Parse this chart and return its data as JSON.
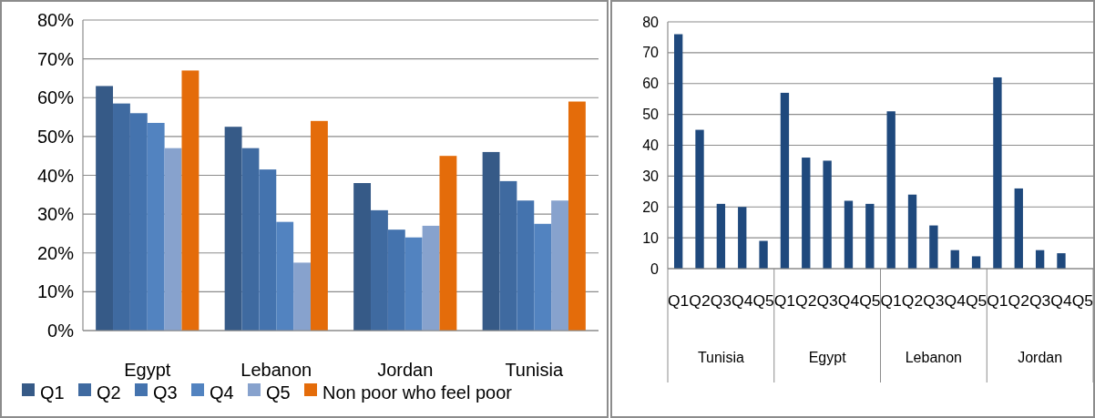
{
  "chart_data": [
    {
      "type": "bar",
      "categories": [
        "Egypt",
        "Lebanon",
        "Jordan",
        "Tunisia"
      ],
      "series": [
        {
          "name": "Q1",
          "color": "#365a87",
          "values": [
            63,
            52.5,
            38,
            46
          ]
        },
        {
          "name": "Q2",
          "color": "#3f6aa0",
          "values": [
            58.5,
            47,
            31,
            38.5
          ]
        },
        {
          "name": "Q3",
          "color": "#4473ae",
          "values": [
            56,
            41.5,
            26,
            33.5
          ]
        },
        {
          "name": "Q4",
          "color": "#5283c0",
          "values": [
            53.5,
            28,
            24,
            27.5
          ]
        },
        {
          "name": "Q5",
          "color": "#87a2cd",
          "values": [
            47,
            17.5,
            27,
            33.5
          ]
        },
        {
          "name": "Non poor who feel poor",
          "color": "#e46c0a",
          "values": [
            67,
            54,
            45,
            59
          ]
        }
      ],
      "ylim": [
        0,
        80
      ],
      "yticks": [
        {
          "value": 0,
          "label": "0%"
        },
        {
          "value": 10,
          "label": "10%"
        },
        {
          "value": 20,
          "label": "20%"
        },
        {
          "value": 30,
          "label": "30%"
        },
        {
          "value": 40,
          "label": "40%"
        },
        {
          "value": 50,
          "label": "50%"
        },
        {
          "value": 60,
          "label": "60%"
        },
        {
          "value": 70,
          "label": "70%"
        },
        {
          "value": 80,
          "label": "80%"
        }
      ],
      "grid": "y",
      "legend": "bottom"
    },
    {
      "type": "bar",
      "categories": [
        "Q1",
        "Q2",
        "Q3",
        "Q4",
        "Q5",
        "Q1",
        "Q2",
        "Q3",
        "Q4",
        "Q5",
        "Q1",
        "Q2",
        "Q3",
        "Q4",
        "Q5",
        "Q1",
        "Q2",
        "Q3",
        "Q4",
        "Q5"
      ],
      "values": [
        76,
        45,
        21,
        20,
        9,
        57,
        36,
        35,
        22,
        21,
        51,
        24,
        14,
        6,
        4,
        62,
        26,
        6,
        5,
        null
      ],
      "color": "#1f497d",
      "annotations": [
        "Tunisia",
        "Egypt",
        "Lebanon",
        "Jordan"
      ],
      "ylim": [
        0,
        80
      ],
      "yticks": [
        0,
        10,
        20,
        30,
        40,
        50,
        60,
        70,
        80
      ],
      "grid": "y"
    }
  ]
}
